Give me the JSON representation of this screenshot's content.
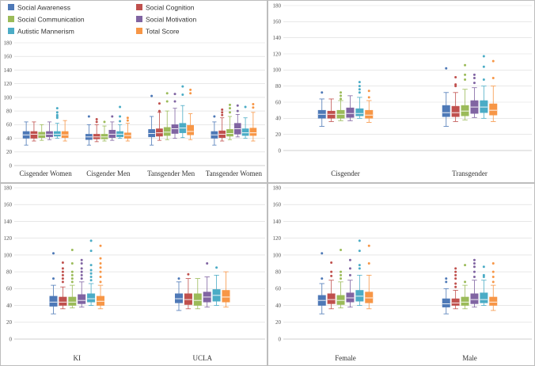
{
  "chart_data": [
    {
      "type": "boxplot",
      "ylim": [
        0,
        180
      ],
      "yticks": [
        0,
        20,
        40,
        60,
        80,
        100,
        120,
        140,
        160,
        180
      ],
      "legend_position": "top-left",
      "categories": [
        "Cisgender Women",
        "Cisgender Men",
        "Tansgender Men",
        "Tansgender Women"
      ],
      "series": [
        {
          "name": "Social Awareness",
          "color": "#4e79b7",
          "boxes": [
            {
              "min": 30,
              "q1": 40,
              "median": 45,
              "q3": 50,
              "max": 64,
              "outliers": []
            },
            {
              "min": 30,
              "q1": 38,
              "median": 42,
              "q3": 46,
              "max": 60,
              "outliers": [
                72
              ]
            },
            {
              "min": 30,
              "q1": 42,
              "median": 47,
              "q3": 53,
              "max": 72,
              "outliers": [
                102
              ]
            },
            {
              "min": 30,
              "q1": 40,
              "median": 45,
              "q3": 50,
              "max": 64,
              "outliers": [
                72
              ]
            }
          ]
        },
        {
          "name": "Social Cognition",
          "color": "#c0504d",
          "boxes": [
            {
              "min": 36,
              "q1": 40,
              "median": 46,
              "q3": 50,
              "max": 64,
              "outliers": []
            },
            {
              "min": 35,
              "q1": 39,
              "median": 42,
              "q3": 46,
              "max": 60,
              "outliers": [
                64,
                68
              ]
            },
            {
              "min": 37,
              "q1": 43,
              "median": 48,
              "q3": 54,
              "max": 78,
              "outliers": [
                80,
                91
              ]
            },
            {
              "min": 36,
              "q1": 41,
              "median": 46,
              "q3": 51,
              "max": 70,
              "outliers": [
                74,
                78,
                82
              ]
            }
          ]
        },
        {
          "name": "Social Communication",
          "color": "#9bbb59",
          "boxes": [
            {
              "min": 37,
              "q1": 41,
              "median": 45,
              "q3": 49,
              "max": 60,
              "outliers": []
            },
            {
              "min": 36,
              "q1": 39,
              "median": 42,
              "q3": 46,
              "max": 58,
              "outliers": [
                64
              ]
            },
            {
              "min": 38,
              "q1": 44,
              "median": 49,
              "q3": 56,
              "max": 80,
              "outliers": [
                94,
                106
              ]
            },
            {
              "min": 38,
              "q1": 43,
              "median": 47,
              "q3": 53,
              "max": 72,
              "outliers": [
                78,
                84,
                89
              ]
            }
          ]
        },
        {
          "name": "Social Motivation",
          "color": "#8064a2",
          "boxes": [
            {
              "min": 38,
              "q1": 42,
              "median": 46,
              "q3": 50,
              "max": 64,
              "outliers": []
            },
            {
              "min": 37,
              "q1": 41,
              "median": 46,
              "q3": 52,
              "max": 64,
              "outliers": [
                72
              ]
            },
            {
              "min": 40,
              "q1": 47,
              "median": 54,
              "q3": 60,
              "max": 84,
              "outliers": [
                94,
                105
              ]
            },
            {
              "min": 42,
              "q1": 46,
              "median": 54,
              "q3": 62,
              "max": 75,
              "outliers": [
                80,
                88
              ]
            }
          ]
        },
        {
          "name": "Autistic Mannerism",
          "color": "#4bacc6",
          "boxes": [
            {
              "min": 40,
              "q1": 43,
              "median": 46,
              "q3": 50,
              "max": 62,
              "outliers": [
                70,
                72,
                74,
                78,
                84
              ]
            },
            {
              "min": 40,
              "q1": 42,
              "median": 46,
              "q3": 50,
              "max": 60,
              "outliers": [
                65,
                72,
                86
              ]
            },
            {
              "min": 41,
              "q1": 48,
              "median": 55,
              "q3": 62,
              "max": 88,
              "outliers": [
                104,
                116
              ]
            },
            {
              "min": 40,
              "q1": 44,
              "median": 48,
              "q3": 54,
              "max": 70,
              "outliers": [
                86
              ]
            }
          ]
        },
        {
          "name": "Total Score",
          "color": "#f79646",
          "boxes": [
            {
              "min": 36,
              "q1": 41,
              "median": 45,
              "q3": 50,
              "max": 66,
              "outliers": []
            },
            {
              "min": 36,
              "q1": 40,
              "median": 44,
              "q3": 48,
              "max": 62,
              "outliers": [
                66,
                70
              ]
            },
            {
              "min": 38,
              "q1": 45,
              "median": 50,
              "q3": 59,
              "max": 76,
              "outliers": [
                106,
                111
              ]
            },
            {
              "min": 36,
              "q1": 44,
              "median": 48,
              "q3": 55,
              "max": 78,
              "outliers": [
                85,
                90
              ]
            }
          ]
        }
      ]
    },
    {
      "type": "boxplot",
      "ylim": [
        0,
        180
      ],
      "yticks": [
        0,
        20,
        40,
        60,
        80,
        100,
        120,
        140,
        160,
        180
      ],
      "categories": [
        "Cisgender",
        "Transgender"
      ],
      "series": [
        {
          "name": "Social Awareness",
          "color": "#4e79b7",
          "boxes": [
            {
              "min": 30,
              "q1": 40,
              "median": 45,
              "q3": 50,
              "max": 64,
              "outliers": [
                72
              ]
            },
            {
              "min": 30,
              "q1": 42,
              "median": 47,
              "q3": 56,
              "max": 72,
              "outliers": [
                102
              ]
            }
          ]
        },
        {
          "name": "Social Cognition",
          "color": "#c0504d",
          "boxes": [
            {
              "min": 36,
              "q1": 40,
              "median": 45,
              "q3": 49,
              "max": 64,
              "outliers": []
            },
            {
              "min": 36,
              "q1": 42,
              "median": 47,
              "q3": 55,
              "max": 72,
              "outliers": [
                80,
                82,
                91
              ]
            }
          ]
        },
        {
          "name": "Social Communication",
          "color": "#9bbb59",
          "boxes": [
            {
              "min": 37,
              "q1": 40,
              "median": 45,
              "q3": 50,
              "max": 62,
              "outliers": [
                64,
                68,
                72
              ]
            },
            {
              "min": 38,
              "q1": 43,
              "median": 49,
              "q3": 56,
              "max": 76,
              "outliers": [
                88,
                94,
                106
              ]
            }
          ]
        },
        {
          "name": "Social Motivation",
          "color": "#8064a2",
          "boxes": [
            {
              "min": 37,
              "q1": 41,
              "median": 46,
              "q3": 53,
              "max": 68,
              "outliers": []
            },
            {
              "min": 41,
              "q1": 46,
              "median": 54,
              "q3": 62,
              "max": 78,
              "outliers": [
                84,
                90,
                94
              ]
            }
          ]
        },
        {
          "name": "Autistic Mannerism",
          "color": "#4bacc6",
          "boxes": [
            {
              "min": 40,
              "q1": 43,
              "median": 46,
              "q3": 52,
              "max": 66,
              "outliers": [
                72,
                76,
                80,
                85
              ]
            },
            {
              "min": 40,
              "q1": 47,
              "median": 54,
              "q3": 62,
              "max": 80,
              "outliers": [
                88,
                104,
                117
              ]
            }
          ]
        },
        {
          "name": "Total Score",
          "color": "#f79646",
          "boxes": [
            {
              "min": 35,
              "q1": 40,
              "median": 44,
              "q3": 50,
              "max": 62,
              "outliers": [
                66,
                74
              ]
            },
            {
              "min": 36,
              "q1": 44,
              "median": 50,
              "q3": 58,
              "max": 80,
              "outliers": [
                90,
                111
              ]
            }
          ]
        }
      ]
    },
    {
      "type": "boxplot",
      "ylim": [
        0,
        180
      ],
      "yticks": [
        0,
        20,
        40,
        60,
        80,
        100,
        120,
        140,
        160,
        180
      ],
      "categories": [
        "KI",
        "UCLA"
      ],
      "series": [
        {
          "name": "Social Awareness",
          "color": "#4e79b7",
          "boxes": [
            {
              "min": 30,
              "q1": 39,
              "median": 44,
              "q3": 51,
              "max": 64,
              "outliers": [
                72,
                102
              ]
            },
            {
              "min": 34,
              "q1": 43,
              "median": 48,
              "q3": 54,
              "max": 68,
              "outliers": [
                72
              ]
            }
          ]
        },
        {
          "name": "Social Cognition",
          "color": "#c0504d",
          "boxes": [
            {
              "min": 36,
              "q1": 40,
              "median": 44,
              "q3": 50,
              "max": 62,
              "outliers": [
                68,
                72,
                76,
                80,
                84,
                91
              ]
            },
            {
              "min": 36,
              "q1": 41,
              "median": 47,
              "q3": 54,
              "max": 72,
              "outliers": [
                77
              ]
            }
          ]
        },
        {
          "name": "Social Communication",
          "color": "#9bbb59",
          "boxes": [
            {
              "min": 37,
              "q1": 40,
              "median": 44,
              "q3": 50,
              "max": 64,
              "outliers": [
                68,
                72,
                76,
                80,
                90,
                106
              ]
            },
            {
              "min": 36,
              "q1": 40,
              "median": 46,
              "q3": 54,
              "max": 72,
              "outliers": []
            }
          ]
        },
        {
          "name": "Social Motivation",
          "color": "#8064a2",
          "boxes": [
            {
              "min": 38,
              "q1": 42,
              "median": 46,
              "q3": 53,
              "max": 68,
              "outliers": [
                72,
                76,
                80,
                84,
                90,
                94
              ]
            },
            {
              "min": 38,
              "q1": 44,
              "median": 50,
              "q3": 56,
              "max": 74,
              "outliers": [
                90
              ]
            }
          ]
        },
        {
          "name": "Autistic Mannerism",
          "color": "#4bacc6",
          "boxes": [
            {
              "min": 40,
              "q1": 44,
              "median": 48,
              "q3": 54,
              "max": 66,
              "outliers": [
                70,
                74,
                78,
                82,
                88,
                105,
                117
              ]
            },
            {
              "min": 40,
              "q1": 45,
              "median": 52,
              "q3": 59,
              "max": 76,
              "outliers": [
                85
              ]
            }
          ]
        },
        {
          "name": "Total Score",
          "color": "#f79646",
          "boxes": [
            {
              "min": 36,
              "q1": 40,
              "median": 45,
              "q3": 51,
              "max": 64,
              "outliers": [
                68,
                74,
                80,
                85,
                90,
                96,
                111
              ]
            },
            {
              "min": 38,
              "q1": 44,
              "median": 50,
              "q3": 58,
              "max": 80,
              "outliers": []
            }
          ]
        }
      ]
    },
    {
      "type": "boxplot",
      "ylim": [
        0,
        180
      ],
      "yticks": [
        0,
        20,
        40,
        60,
        80,
        100,
        120,
        140,
        160,
        180
      ],
      "categories": [
        "Female",
        "Male"
      ],
      "series": [
        {
          "name": "Social Awareness",
          "color": "#4e79b7",
          "boxes": [
            {
              "min": 30,
              "q1": 40,
              "median": 46,
              "q3": 52,
              "max": 66,
              "outliers": [
                72,
                102
              ]
            },
            {
              "min": 30,
              "q1": 38,
              "median": 42,
              "q3": 48,
              "max": 60,
              "outliers": [
                68,
                72
              ]
            }
          ]
        },
        {
          "name": "Social Cognition",
          "color": "#c0504d",
          "boxes": [
            {
              "min": 36,
              "q1": 42,
              "median": 47,
              "q3": 54,
              "max": 70,
              "outliers": [
                75,
                80,
                91
              ]
            },
            {
              "min": 36,
              "q1": 40,
              "median": 43,
              "q3": 48,
              "max": 58,
              "outliers": [
                62,
                66,
                72,
                76,
                80,
                84
              ]
            }
          ]
        },
        {
          "name": "Social Communication",
          "color": "#9bbb59",
          "boxes": [
            {
              "min": 37,
              "q1": 41,
              "median": 46,
              "q3": 52,
              "max": 68,
              "outliers": [
                72,
                76,
                80,
                106
              ]
            },
            {
              "min": 36,
              "q1": 40,
              "median": 44,
              "q3": 50,
              "max": 64,
              "outliers": [
                68,
                88
              ]
            }
          ]
        },
        {
          "name": "Social Motivation",
          "color": "#8064a2",
          "boxes": [
            {
              "min": 38,
              "q1": 44,
              "median": 49,
              "q3": 55,
              "max": 70,
              "outliers": [
                76,
                84,
                94
              ]
            },
            {
              "min": 38,
              "q1": 42,
              "median": 47,
              "q3": 54,
              "max": 70,
              "outliers": [
                74,
                80,
                86,
                90,
                94
              ]
            }
          ]
        },
        {
          "name": "Autistic Mannerism",
          "color": "#4bacc6",
          "boxes": [
            {
              "min": 40,
              "q1": 45,
              "median": 51,
              "q3": 58,
              "max": 76,
              "outliers": [
                84,
                88,
                105,
                117
              ]
            },
            {
              "min": 40,
              "q1": 43,
              "median": 47,
              "q3": 55,
              "max": 70,
              "outliers": [
                74,
                76,
                86
              ]
            }
          ]
        },
        {
          "name": "Total Score",
          "color": "#f79646",
          "boxes": [
            {
              "min": 36,
              "q1": 43,
              "median": 49,
              "q3": 56,
              "max": 76,
              "outliers": [
                90,
                111
              ]
            },
            {
              "min": 34,
              "q1": 40,
              "median": 44,
              "q3": 50,
              "max": 64,
              "outliers": [
                68,
                74,
                80,
                90
              ]
            }
          ]
        }
      ]
    }
  ]
}
